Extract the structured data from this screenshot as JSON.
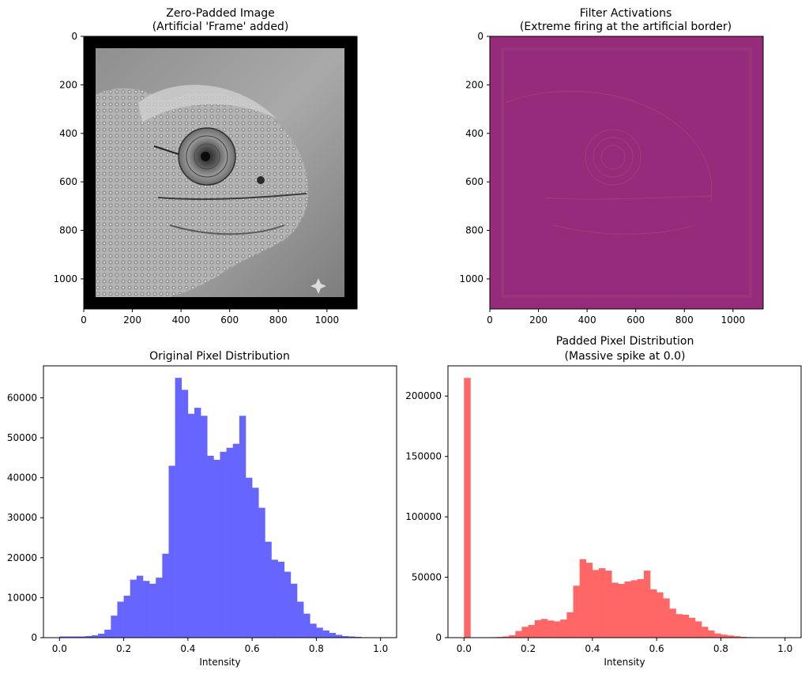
{
  "colors": {
    "blue_bar": "#6666ff",
    "red_bar": "#ff6666",
    "activation_fill": "#972b7b",
    "activation_line": "#a8557b",
    "frame_black": "#000000",
    "axis": "#000000"
  },
  "chart_data": [
    {
      "type": "image",
      "title": "Zero-Padded Image\n(Artificial 'Frame' added)",
      "title_lines": [
        "Zero-Padded Image",
        "(Artificial 'Frame' added)"
      ],
      "content": "grayscale chameleon photo with black zero-padded border",
      "xlim": [
        0,
        1124
      ],
      "ylim": [
        1124,
        0
      ],
      "xticks": [
        0,
        200,
        400,
        600,
        800,
        1000
      ],
      "yticks": [
        0,
        200,
        400,
        600,
        800,
        1000
      ],
      "xlabel": "",
      "ylabel": ""
    },
    {
      "type": "heatmap",
      "title": "Filter Activations\n(Extreme firing at the artificial border)",
      "title_lines": [
        "Filter Activations",
        "(Extreme firing at the artificial border)"
      ],
      "content": "near-uniform magenta activation map with faint edge response at padding border",
      "xlim": [
        0,
        1124
      ],
      "ylim": [
        1124,
        0
      ],
      "xticks": [
        0,
        200,
        400,
        600,
        800,
        1000
      ],
      "yticks": [
        0,
        200,
        400,
        600,
        800,
        1000
      ],
      "xlabel": "",
      "ylabel": ""
    },
    {
      "type": "bar",
      "title": "Original Pixel Distribution",
      "title_lines": [
        "Original Pixel Distribution"
      ],
      "xlabel": "Intensity",
      "ylabel": "",
      "bin_start": 0.0,
      "bin_width": 0.02,
      "values": [
        300,
        300,
        300,
        300,
        400,
        600,
        1000,
        2000,
        5500,
        9000,
        10500,
        14500,
        15500,
        14200,
        13500,
        15000,
        21000,
        43000,
        65000,
        62000,
        56000,
        57500,
        55500,
        45500,
        44500,
        46500,
        47500,
        48500,
        55500,
        40000,
        37500,
        32500,
        24000,
        19500,
        19000,
        16500,
        13500,
        9000,
        6000,
        3500,
        2500,
        1800,
        1200,
        700,
        400,
        300,
        200,
        100,
        50,
        20
      ],
      "xlim": [
        -0.05,
        1.05
      ],
      "ylim": [
        0,
        68000
      ],
      "xticks": [
        0.0,
        0.2,
        0.4,
        0.6,
        0.8,
        1.0
      ],
      "xtick_labels": [
        "0.0",
        "0.2",
        "0.4",
        "0.6",
        "0.8",
        "1.0"
      ],
      "yticks": [
        0,
        10000,
        20000,
        30000,
        40000,
        50000,
        60000
      ],
      "ytick_labels": [
        "0",
        "10000",
        "20000",
        "30000",
        "40000",
        "50000",
        "60000"
      ]
    },
    {
      "type": "bar",
      "title": "Padded Pixel Distribution\n(Massive spike at 0.0)",
      "title_lines": [
        "Padded Pixel Distribution",
        "(Massive spike at 0.0)"
      ],
      "xlabel": "Intensity",
      "ylabel": "",
      "bin_start": 0.0,
      "bin_width": 0.02,
      "values": [
        215000,
        300,
        300,
        300,
        400,
        600,
        1000,
        2000,
        5500,
        9000,
        10500,
        14500,
        15500,
        14200,
        13500,
        15000,
        21000,
        43000,
        65000,
        62000,
        56000,
        57500,
        55500,
        45500,
        44500,
        46500,
        47500,
        48500,
        55500,
        40000,
        37500,
        32500,
        24000,
        19500,
        19000,
        16500,
        13500,
        9000,
        6000,
        3500,
        2500,
        1800,
        1200,
        700,
        400,
        300,
        200,
        100,
        50,
        20
      ],
      "xlim": [
        -0.05,
        1.05
      ],
      "ylim": [
        0,
        225000
      ],
      "xticks": [
        0.0,
        0.2,
        0.4,
        0.6,
        0.8,
        1.0
      ],
      "xtick_labels": [
        "0.0",
        "0.2",
        "0.4",
        "0.6",
        "0.8",
        "1.0"
      ],
      "yticks": [
        0,
        50000,
        100000,
        150000,
        200000
      ],
      "ytick_labels": [
        "0",
        "50000",
        "100000",
        "150000",
        "200000"
      ]
    }
  ]
}
